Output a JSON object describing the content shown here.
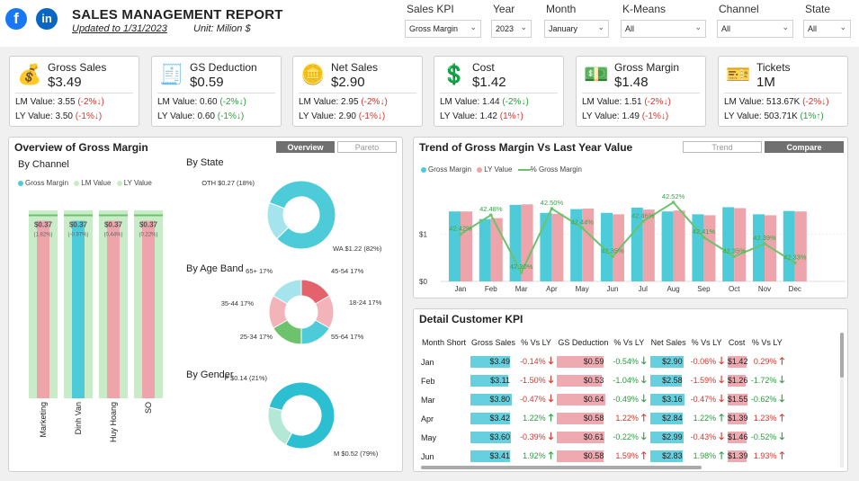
{
  "header": {
    "facebook_glyph": "f",
    "linkedin_glyph": "in",
    "title": "SALES MANAGEMENT REPORT",
    "updated": "Updated to 1/31/2023",
    "unit": "Unit: Milion $"
  },
  "filters": [
    {
      "label": "Sales KPI",
      "value": "Gross Margin"
    },
    {
      "label": "Year",
      "value": "2023"
    },
    {
      "label": "Month",
      "value": "January"
    },
    {
      "label": "K-Means",
      "value": "All"
    },
    {
      "label": "Channel",
      "value": "All"
    },
    {
      "label": "State",
      "value": "All"
    }
  ],
  "kpis": [
    {
      "name": "Gross Sales",
      "value": "$3.49",
      "icon": "money-bag-icon",
      "lm": "LM Value: 3.55",
      "lm_pct": "(-2%",
      "lm_arrow": "↓)",
      "lm_dir": "neg",
      "ly": "LY Value: 3.50",
      "ly_pct": "(-1%",
      "ly_arrow": "↓)",
      "ly_dir": "neg"
    },
    {
      "name": "GS Deduction",
      "value": "$0.59",
      "icon": "cash-register-icon",
      "lm": "LM Value: 0.60",
      "lm_pct": "(-2%",
      "lm_arrow": "↓)",
      "lm_dir": "pos",
      "ly": "LY Value: 0.60",
      "ly_pct": "(-1%",
      "ly_arrow": "↓)",
      "ly_dir": "pos"
    },
    {
      "name": "Net Sales",
      "value": "$2.90",
      "icon": "coins-stack-icon",
      "lm": "LM Value: 2.95",
      "lm_pct": "(-2%",
      "lm_arrow": "↓)",
      "lm_dir": "neg",
      "ly": "LY Value: 2.90",
      "ly_pct": "(-1%",
      "ly_arrow": "↓)",
      "ly_dir": "neg"
    },
    {
      "name": "Cost",
      "value": "$1.42",
      "icon": "coin-cost-icon",
      "lm": "LM Value: 1.44",
      "lm_pct": "(-2%",
      "lm_arrow": "↓)",
      "lm_dir": "pos",
      "ly": "LY Value: 1.42",
      "ly_pct": "(1%",
      "ly_arrow": "↑)",
      "ly_dir": "neg"
    },
    {
      "name": "Gross Margin",
      "value": "$1.48",
      "icon": "hand-money-icon",
      "lm": "LM Value: 1.51",
      "lm_pct": "(-2%",
      "lm_arrow": "↓)",
      "lm_dir": "neg",
      "ly": "LY Value: 1.49",
      "ly_pct": "(-1%",
      "ly_arrow": "↓)",
      "ly_dir": "neg"
    },
    {
      "name": "Tickets",
      "value": "1M",
      "icon": "ticket-icon",
      "lm": "LM Value: 513.67K",
      "lm_pct": "(-2%",
      "lm_arrow": "↓)",
      "lm_dir": "neg",
      "ly": "LY Value: 503.71K",
      "ly_pct": "(1%",
      "ly_arrow": "↑)",
      "ly_dir": "pos"
    }
  ],
  "overview": {
    "title": "Overview of Gross Margin",
    "btn_overview": "Overview",
    "btn_pareto": "Pareto",
    "by_channel": "By Channel",
    "by_state": "By State",
    "by_age": "By Age Band",
    "by_gender": "By Gender",
    "legend": [
      "Gross Margin",
      "LM Value",
      "LY Value"
    ]
  },
  "trend": {
    "title": "Trend of Gross Margin Vs Last Year Value",
    "btn_trend": "Trend",
    "btn_compare": "Compare",
    "legend": [
      "Gross Margin",
      "LY Value",
      "% Gross Margin"
    ]
  },
  "detail": {
    "title": "Detail Customer KPI",
    "headers": [
      "Month Short",
      "Gross Sales",
      "% Vs LY",
      "GS Deduction",
      "% Vs LY",
      "Net Sales",
      "% Vs LY",
      "Cost",
      "% Vs LY"
    ],
    "rows": [
      {
        "m": "Jan",
        "gs": "$3.49",
        "gs_p": "-0.14%",
        "gs_d": "neg",
        "ded": "$0.59",
        "ded_p": "-0.54%",
        "ded_d": "pos",
        "ns": "$2.90",
        "ns_p": "-0.06%",
        "ns_d": "neg",
        "c": "$1.42",
        "c_p": "0.29%",
        "c_d": "neg"
      },
      {
        "m": "Feb",
        "gs": "$3.11",
        "gs_p": "-1.50%",
        "gs_d": "neg",
        "ded": "$0.53",
        "ded_p": "-1.04%",
        "ded_d": "pos",
        "ns": "$2.58",
        "ns_p": "-1.59%",
        "ns_d": "neg",
        "c": "$1.26",
        "c_p": "-1.72%",
        "c_d": "pos"
      },
      {
        "m": "Mar",
        "gs": "$3.80",
        "gs_p": "-0.47%",
        "gs_d": "neg",
        "ded": "$0.64",
        "ded_p": "-0.49%",
        "ded_d": "pos",
        "ns": "$3.16",
        "ns_p": "-0.47%",
        "ns_d": "neg",
        "c": "$1.55",
        "c_p": "-0.62%",
        "c_d": "pos"
      },
      {
        "m": "Apr",
        "gs": "$3.42",
        "gs_p": "1.22%",
        "gs_d": "pos",
        "ded": "$0.58",
        "ded_p": "1.22%",
        "ded_d": "neg",
        "ns": "$2.84",
        "ns_p": "1.22%",
        "ns_d": "pos",
        "c": "$1.39",
        "c_p": "1.23%",
        "c_d": "neg"
      },
      {
        "m": "May",
        "gs": "$3.60",
        "gs_p": "-0.39%",
        "gs_d": "neg",
        "ded": "$0.61",
        "ded_p": "-0.22%",
        "ded_d": "pos",
        "ns": "$2.99",
        "ns_p": "-0.43%",
        "ns_d": "neg",
        "c": "$1.46",
        "c_p": "-0.52%",
        "c_d": "pos"
      },
      {
        "m": "Jun",
        "gs": "$3.41",
        "gs_p": "1.92%",
        "gs_d": "pos",
        "ded": "$0.58",
        "ded_p": "1.59%",
        "ded_d": "neg",
        "ns": "$2.83",
        "ns_p": "1.98%",
        "ns_d": "pos",
        "c": "$1.39",
        "c_p": "1.93%",
        "c_d": "neg"
      }
    ]
  },
  "colors": {
    "teal": "#4ecbd9",
    "pink": "#eda4aa",
    "green": "#6cc36c",
    "lightgreen": "#c8ecc8",
    "red": "#d9342b",
    "pos": "#2a9d3f"
  },
  "chart_data": [
    {
      "type": "bar",
      "title": "By Channel",
      "categories": [
        "Marketing",
        "Dinh Van",
        "Huy Hoang",
        "SO"
      ],
      "series": [
        {
          "name": "Gross Margin",
          "values": [
            0.37,
            0.37,
            0.37,
            0.37
          ]
        },
        {
          "name": "LM Value",
          "values": [
            0.38,
            0.38,
            0.38,
            0.38
          ]
        },
        {
          "name": "LY Value",
          "values": [
            0.37,
            0.37,
            0.37,
            0.37
          ]
        }
      ],
      "labels": [
        "$0.37",
        "$0.37",
        "$0.37",
        "$0.37"
      ],
      "pct_labels": [
        "(1.82%)",
        "(-0.97%)",
        "(0.44%)",
        "(0.22%)"
      ]
    },
    {
      "type": "pie",
      "title": "By State",
      "slices": [
        {
          "label": "WA",
          "value": 1.22,
          "text": "WA $1.22 (82%)"
        },
        {
          "label": "OTH",
          "value": 0.27,
          "text": "OTH $0.27 (18%)"
        }
      ]
    },
    {
      "type": "pie",
      "title": "By Age Band",
      "slices": [
        {
          "label": "45-54",
          "value": 17,
          "text": "45-54 17%"
        },
        {
          "label": "18-24",
          "value": 17,
          "text": "18-24 17%"
        },
        {
          "label": "55-64",
          "value": 17,
          "text": "55-64 17%"
        },
        {
          "label": "25-34",
          "value": 17,
          "text": "25-34 17%"
        },
        {
          "label": "35-44",
          "value": 17,
          "text": "35-44 17%"
        },
        {
          "label": "65+",
          "value": 17,
          "text": "65+ 17%"
        }
      ]
    },
    {
      "type": "pie",
      "title": "By Gender",
      "slices": [
        {
          "label": "M",
          "value": 0.52,
          "text": "M $0.52 (79%)"
        },
        {
          "label": "F",
          "value": 0.14,
          "text": "F $0.14 (21%)"
        }
      ]
    },
    {
      "type": "bar",
      "title": "Trend of Gross Margin Vs Last Year Value",
      "categories": [
        "Jan",
        "Feb",
        "Mar",
        "Apr",
        "May",
        "Jun",
        "Jul",
        "Aug",
        "Sep",
        "Oct",
        "Nov",
        "Dec"
      ],
      "series": [
        {
          "name": "Gross Margin",
          "values": [
            1.48,
            1.32,
            1.62,
            1.45,
            1.53,
            1.45,
            1.56,
            1.48,
            1.42,
            1.57,
            1.42,
            1.49
          ]
        },
        {
          "name": "LY Value",
          "values": [
            1.48,
            1.34,
            1.63,
            1.43,
            1.54,
            1.42,
            1.52,
            1.5,
            1.4,
            1.55,
            1.4,
            1.48
          ]
        },
        {
          "name": "% Gross Margin",
          "values": [
            42.42,
            42.48,
            42.3,
            42.5,
            42.44,
            42.35,
            42.46,
            42.52,
            42.41,
            42.35,
            42.39,
            42.33
          ]
        }
      ],
      "line_labels": [
        "42.42%",
        "42.48%",
        "42.30%",
        "42.50%",
        "42.44%",
        "42.35%",
        "42.46%",
        "42.52%",
        "42.41%",
        "42.35%",
        "42.39%",
        "42.33%"
      ],
      "yticks": [
        "$0",
        "$1"
      ],
      "ylim": [
        0,
        1.75
      ]
    }
  ]
}
